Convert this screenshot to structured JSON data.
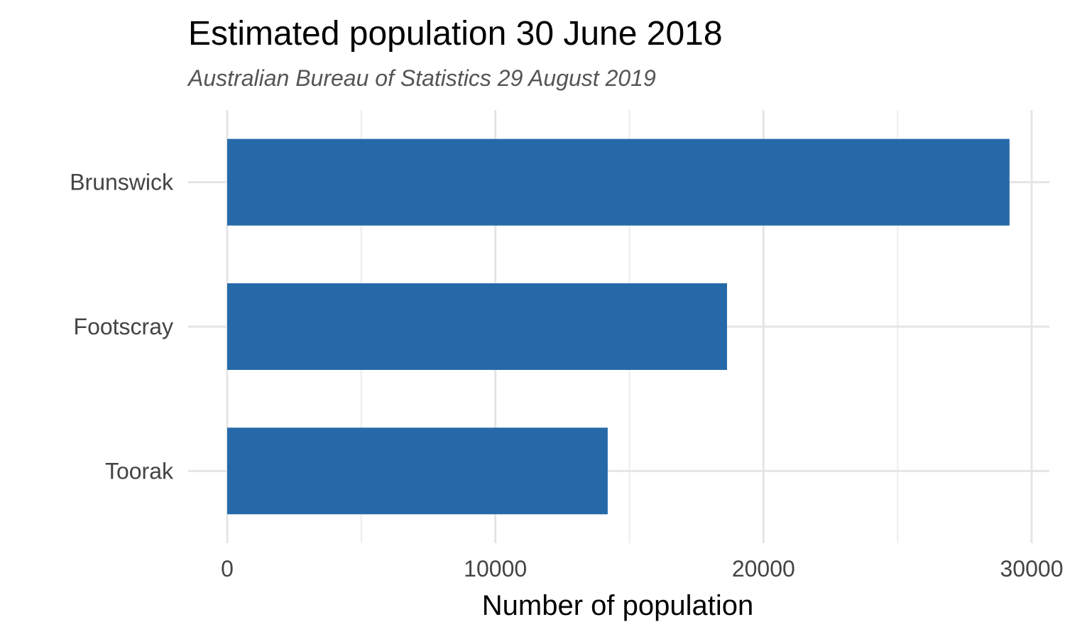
{
  "chart_data": {
    "type": "bar",
    "orientation": "horizontal",
    "title": "Estimated population 30 June 2018",
    "subtitle": "Australian Bureau of Statistics 29 August 2019",
    "xlabel": "Number of population",
    "ylabel": "",
    "categories": [
      "Brunswick",
      "Footscray",
      "Toorak"
    ],
    "values": [
      29175,
      18640,
      14190
    ],
    "xlim": [
      0,
      30000
    ],
    "x_ticks": [
      0,
      10000,
      20000,
      30000
    ],
    "x_tick_labels": [
      "0",
      "10000",
      "20000",
      "30000"
    ],
    "x_minor_ticks": [
      5000,
      15000,
      25000
    ],
    "grid": true,
    "legend": "none",
    "bar_color": "#2569a8"
  }
}
